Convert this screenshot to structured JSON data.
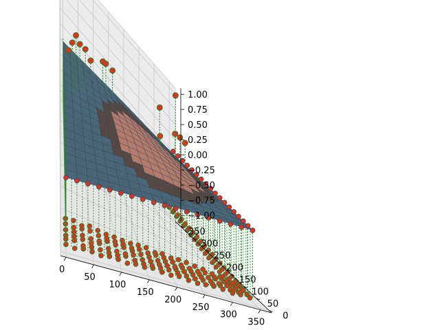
{
  "chart_data": {
    "type": "scatter",
    "projection": "3d",
    "title": "",
    "xlabel": "",
    "ylabel": "",
    "zlabel": "",
    "xlim": [
      -10,
      370
    ],
    "ylim": [
      -10,
      370
    ],
    "zlim": [
      -1.1,
      1.1
    ],
    "x_ticks": [
      0,
      50,
      100,
      150,
      200,
      250,
      300,
      350
    ],
    "x_tick_labels": [
      "0",
      "50",
      "100",
      "150",
      "200",
      "250",
      "300",
      "350"
    ],
    "y_ticks": [
      0,
      50,
      100,
      150,
      200,
      250,
      300,
      350
    ],
    "y_tick_labels": [
      "0",
      "50",
      "100",
      "150",
      "200",
      "250",
      "300",
      "350"
    ],
    "z_ticks": [
      -1.0,
      -0.75,
      -0.5,
      -0.25,
      0.0,
      0.25,
      0.5,
      0.75,
      1.0
    ],
    "z_tick_labels": [
      "−1.00",
      "−0.75",
      "−0.50",
      "−0.25",
      "0.00",
      "0.25",
      "0.50",
      "0.75",
      "1.00"
    ],
    "grid": true,
    "surface": {
      "x_range": [
        0,
        340
      ],
      "y_range": [
        0,
        340
      ],
      "z_approx": 0.0,
      "texture": "photo-portrait",
      "colors": {
        "edge": "#3c5a6e",
        "skin": "#b07060",
        "hair": "#4a3a34"
      }
    },
    "scatter_series": [
      {
        "marker_color": "#e0331c",
        "marker_edge": "#2a7a2a",
        "stem_color": "#2f8f2f",
        "bottom_layer_z": -1.0,
        "high_points": [
          {
            "x": 10,
            "y": 200,
            "z": 0.75
          },
          {
            "x": 20,
            "y": 215,
            "z": 0.82
          },
          {
            "x": 30,
            "y": 228,
            "z": 0.9
          },
          {
            "x": 40,
            "y": 232,
            "z": 0.78
          },
          {
            "x": 55,
            "y": 240,
            "z": 0.72
          },
          {
            "x": 70,
            "y": 250,
            "z": 0.55
          },
          {
            "x": 110,
            "y": 290,
            "z": 0.5
          },
          {
            "x": 120,
            "y": 296,
            "z": 0.48
          },
          {
            "x": 140,
            "y": 300,
            "z": 0.45
          },
          {
            "x": 250,
            "y": 250,
            "z": 0.62
          },
          {
            "x": 280,
            "y": 230,
            "z": 0.42
          },
          {
            "x": 300,
            "y": 220,
            "z": 0.4
          },
          {
            "x": 340,
            "y": 330,
            "z": 0.95
          },
          {
            "x": 320,
            "y": 280,
            "z": 0.35
          },
          {
            "x": 230,
            "y": 200,
            "z": 0.3
          }
        ]
      }
    ]
  }
}
